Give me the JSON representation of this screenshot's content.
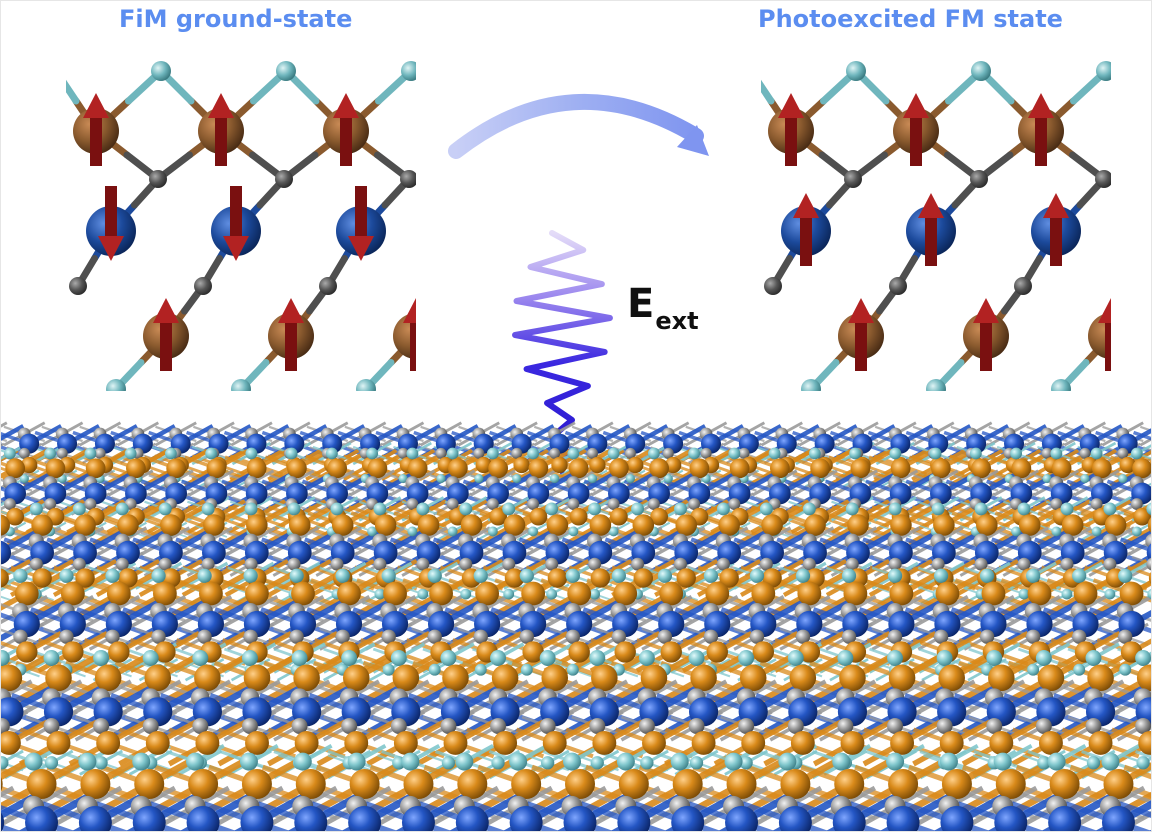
{
  "titles": {
    "left": "FiM ground-state",
    "right": "Photoexcited FM state"
  },
  "field_label": {
    "symbol": "E",
    "subscript": "ext"
  },
  "lattice_panels": {
    "left": {
      "state": "ferrimagnetic",
      "orange_spin": "up",
      "blue_spin": "down"
    },
    "right": {
      "state": "ferromagnetic",
      "orange_spin": "up",
      "blue_spin": "up"
    }
  },
  "colors": {
    "title_text": "#5b8df0",
    "orange_atom": "#8a5a2e",
    "blue_atom": "#1c4a9c",
    "gray_atom": "#555555",
    "cyan_atom": "#6fb6bd",
    "spin_arrow": "#7a1010",
    "curved_arrow": "#8a9ef0",
    "pulse": "#3a2bd6",
    "slab_orange": "#d98a1a",
    "slab_blue": "#2456c4",
    "slab_cyan": "#7fc6cc",
    "slab_gray": "#9a9a9a"
  },
  "icons": {
    "transition": "curved-arrow-icon",
    "excitation": "wavy-arrow-icon"
  }
}
